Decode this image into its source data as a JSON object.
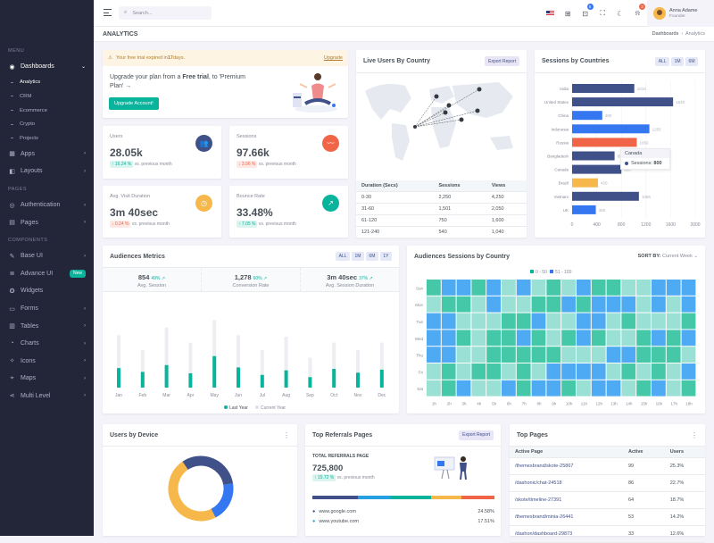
{
  "sidebar": {
    "menu_title": "MENU",
    "pages_title": "PAGES",
    "components_title": "COMPONENTS",
    "dashboards": "Dashboards",
    "sub": [
      "Analytics",
      "CRM",
      "Ecommerce",
      "Crypto",
      "Projects"
    ],
    "apps": "Apps",
    "layouts": "Layouts",
    "authentication": "Authentication",
    "pages": "Pages",
    "comp": [
      "Base UI",
      "Advance UI",
      "Widgets",
      "Forms",
      "Tables",
      "Charts",
      "Icons",
      "Maps",
      "Multi Level"
    ],
    "new_badge": "New"
  },
  "topbar": {
    "search_placeholder": "Search...",
    "cart_count": "5",
    "notif_count": "3",
    "user_name": "Anna Adame",
    "user_role": "Founder"
  },
  "page": {
    "title": "ANALYTICS",
    "breadcrumb_root": "Dashboards",
    "breadcrumb_current": "Analytics"
  },
  "trial": {
    "notice_pre": "Your free trial expired in ",
    "notice_days": "17",
    "notice_post": " days.",
    "upgrade_link": "Upgrade",
    "msg_pre": "Upgrade your plan from a ",
    "msg_bold": "Free trial",
    "msg_post": ", to 'Premium Plan'",
    "button": "Upgrade Account!"
  },
  "stats": [
    {
      "label": "Users",
      "value": "28.05k",
      "change": "16.24 %",
      "dir": "up",
      "note": "vs. previous month",
      "color": "#405189"
    },
    {
      "label": "Sessions",
      "value": "97.66k",
      "change": "3.96 %",
      "dir": "down",
      "note": "vs. previous month",
      "color": "#f06548"
    },
    {
      "label": "Avg. Visit Duration",
      "value": "3m 40sec",
      "change": "0.24 %",
      "dir": "down",
      "note": "vs. previous month",
      "color": "#f7b84b"
    },
    {
      "label": "Bounce Rate",
      "value": "33.48%",
      "change": "7.05 %",
      "dir": "up",
      "note": "vs. previous month",
      "color": "#0ab39c"
    }
  ],
  "live_users": {
    "title": "Live Users By Country",
    "button": "Export Report",
    "headers": [
      "Duration (Secs)",
      "Sessions",
      "Views"
    ],
    "rows": [
      [
        "0-30",
        "2,250",
        "4,250"
      ],
      [
        "31-60",
        "1,501",
        "2,050"
      ],
      [
        "61-120",
        "750",
        "1,600"
      ],
      [
        "121-240",
        "540",
        "1,040"
      ]
    ]
  },
  "sessions_countries": {
    "title": "Sessions by Countries",
    "pills": [
      "ALL",
      "1M",
      "6M"
    ],
    "tooltip_title": "Canada",
    "tooltip_label": "Sessions:",
    "tooltip_value": "800"
  },
  "audiences_metrics": {
    "title": "Audiences Metrics",
    "pills": [
      "ALL",
      "1M",
      "6M",
      "1Y"
    ],
    "metrics": [
      {
        "value": "854",
        "change": "49%",
        "label": "Avg. Session"
      },
      {
        "value": "1,278",
        "change": "60%",
        "label": "Conversion Rate"
      },
      {
        "value": "3m 40sec",
        "change": "37%",
        "label": "Avg. Session Duration"
      }
    ],
    "legend": [
      "Last Year",
      "Current Year"
    ]
  },
  "audiences_sessions": {
    "title": "Audiences Sessions by Country",
    "sort_label": "SORT BY:",
    "sort_value": "Current Week",
    "legend": [
      "0 - 50",
      "51 - 100"
    ]
  },
  "users_device": {
    "title": "Users by Device"
  },
  "top_referrals": {
    "title": "Top Referrals Pages",
    "button": "Export Report",
    "total_label": "TOTAL REFERRALS PAGE",
    "total_value": "725,800",
    "change": "15.72 %",
    "note": "vs. previous month",
    "rows": [
      [
        "www.google.com",
        "24.58%"
      ],
      [
        "www.youtube.com",
        "17.51%"
      ]
    ]
  },
  "top_pages": {
    "title": "Top Pages",
    "headers": [
      "Active Page",
      "Active",
      "Users"
    ],
    "rows": [
      [
        "/themesbrand/skote-25867",
        "99",
        "25.3%"
      ],
      [
        "/dashonic/chat-24518",
        "86",
        "22.7%"
      ],
      [
        "/skote/timeline-27391",
        "64",
        "18.7%"
      ],
      [
        "/themesbrand/minia-26441",
        "53",
        "14.2%"
      ],
      [
        "/dashon/dashboard-29873",
        "33",
        "12.6%"
      ]
    ]
  },
  "chart_data": [
    {
      "type": "bar",
      "title": "Sessions by Countries",
      "orientation": "horizontal",
      "categories": [
        "India",
        "United States",
        "China",
        "Indonesia",
        "Russia",
        "Bangladesh",
        "Canada",
        "Brazil",
        "Vietnam",
        "UK"
      ],
      "values": [
        1010,
        1640,
        490,
        1255,
        1050,
        690,
        800,
        420,
        1085,
        385
      ],
      "colors": [
        "#405189",
        "#405189",
        "#3577f1",
        "#3577f1",
        "#f06548",
        "#405189",
        "#405189",
        "#f7b84b",
        "#405189",
        "#3577f1"
      ],
      "xticks": [
        0,
        400,
        800,
        1200,
        1600,
        2000
      ],
      "xlim": [
        0,
        2000
      ]
    },
    {
      "type": "bar",
      "title": "Audiences Metrics",
      "categories": [
        "Jan",
        "Feb",
        "Mar",
        "Apr",
        "May",
        "Jun",
        "Jul",
        "Aug",
        "Sep",
        "Oct",
        "Nov",
        "Dec"
      ],
      "series": [
        {
          "name": "Last Year",
          "values": [
            26,
            21,
            30,
            19,
            42,
            27,
            17,
            23,
            14,
            25,
            20,
            24
          ],
          "color": "#25a0e2"
        },
        {
          "name": "Current Year",
          "values": [
            70,
            50,
            80,
            60,
            90,
            70,
            50,
            68,
            40,
            60,
            50,
            60
          ],
          "color": "#ececec"
        }
      ],
      "ylim": [
        0,
        100
      ]
    },
    {
      "type": "heatmap",
      "title": "Audiences Sessions by Country",
      "rows": [
        "Sun",
        "Mon",
        "Tue",
        "Wed",
        "Thu",
        "Fri",
        "Sat"
      ],
      "cols": [
        "1h",
        "2h",
        "3h",
        "4h",
        "5h",
        "6h",
        "7h",
        "8h",
        "9h",
        "10h",
        "11h",
        "12h",
        "13h",
        "14h",
        "15h",
        "16h",
        "17h",
        "18h"
      ],
      "values": [
        [
          2,
          3,
          3,
          2,
          3,
          1,
          3,
          1,
          2,
          1,
          3,
          2,
          2,
          1,
          1,
          3,
          3,
          3
        ],
        [
          1,
          2,
          2,
          1,
          3,
          1,
          1,
          2,
          2,
          3,
          2,
          3,
          3,
          3,
          1,
          3,
          1,
          3
        ],
        [
          3,
          3,
          1,
          1,
          1,
          2,
          2,
          3,
          1,
          1,
          3,
          3,
          1,
          2,
          1,
          1,
          1,
          2
        ],
        [
          3,
          3,
          2,
          1,
          2,
          2,
          3,
          2,
          1,
          2,
          3,
          2,
          1,
          1,
          2,
          3,
          2,
          3
        ],
        [
          3,
          3,
          1,
          1,
          2,
          2,
          2,
          2,
          2,
          1,
          1,
          1,
          3,
          3,
          2,
          2,
          2,
          1
        ],
        [
          1,
          2,
          1,
          2,
          2,
          1,
          2,
          1,
          3,
          3,
          3,
          3,
          1,
          2,
          1,
          2,
          1,
          3
        ],
        [
          1,
          2,
          3,
          1,
          1,
          3,
          2,
          3,
          3,
          2,
          1,
          3,
          3,
          1,
          2,
          3,
          1,
          2
        ]
      ]
    },
    {
      "type": "pie",
      "title": "Users by Device",
      "donut": true,
      "values": [
        48,
        32,
        20
      ],
      "colors": [
        "#f7b84b",
        "#405189",
        "#3577f1"
      ]
    }
  ]
}
